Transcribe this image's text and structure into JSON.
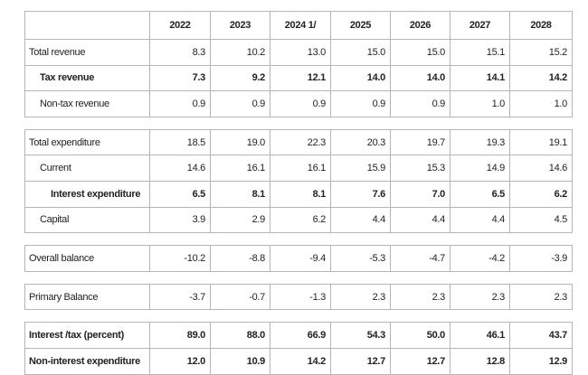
{
  "table": {
    "columns": [
      "2022",
      "2023",
      "2024 1/",
      "2025",
      "2026",
      "2027",
      "2028"
    ],
    "groups": [
      {
        "rows": [
          {
            "label": "Total revenue",
            "level": 0,
            "bold": false,
            "cells": [
              "8.3",
              "10.2",
              "13.0",
              "15.0",
              "15.0",
              "15.1",
              "15.2"
            ]
          },
          {
            "label": "Tax revenue",
            "level": 1,
            "bold": true,
            "cells": [
              "7.3",
              "9.2",
              "12.1",
              "14.0",
              "14.0",
              "14.1",
              "14.2"
            ]
          },
          {
            "label": "Non-tax revenue",
            "level": 1,
            "bold": false,
            "cells": [
              "0.9",
              "0.9",
              "0.9",
              "0.9",
              "0.9",
              "1.0",
              "1.0"
            ]
          }
        ]
      },
      {
        "rows": [
          {
            "label": "Total expenditure",
            "level": 0,
            "bold": false,
            "cells": [
              "18.5",
              "19.0",
              "22.3",
              "20.3",
              "19.7",
              "19.3",
              "19.1"
            ]
          },
          {
            "label": "Current",
            "level": 1,
            "bold": false,
            "cells": [
              "14.6",
              "16.1",
              "16.1",
              "15.9",
              "15.3",
              "14.9",
              "14.6"
            ]
          },
          {
            "label": "Interest expenditure",
            "level": 2,
            "bold": true,
            "cells": [
              "6.5",
              "8.1",
              "8.1",
              "7.6",
              "7.0",
              "6.5",
              "6.2"
            ]
          },
          {
            "label": "Capital",
            "level": 1,
            "bold": false,
            "cells": [
              "3.9",
              "2.9",
              "6.2",
              "4.4",
              "4.4",
              "4.4",
              "4.5"
            ]
          }
        ]
      },
      {
        "rows": [
          {
            "label": "Overall balance",
            "level": 0,
            "bold": false,
            "cells": [
              "-10.2",
              "-8.8",
              "-9.4",
              "-5.3",
              "-4.7",
              "-4.2",
              "-3.9"
            ]
          }
        ]
      },
      {
        "rows": [
          {
            "label": "Primary Balance",
            "level": 0,
            "bold": false,
            "cells": [
              "-3.7",
              "-0.7",
              "-1.3",
              "2.3",
              "2.3",
              "2.3",
              "2.3"
            ]
          }
        ]
      },
      {
        "rows": [
          {
            "label": "Interest /tax (percent)",
            "level": 0,
            "bold": true,
            "cells": [
              "89.0",
              "88.0",
              "66.9",
              "54.3",
              "50.0",
              "46.1",
              "43.7"
            ]
          },
          {
            "label": "Non-interest expenditure",
            "level": 0,
            "bold": true,
            "cells": [
              "12.0",
              "10.9",
              "14.2",
              "12.7",
              "12.7",
              "12.8",
              "12.9"
            ]
          }
        ]
      }
    ]
  }
}
